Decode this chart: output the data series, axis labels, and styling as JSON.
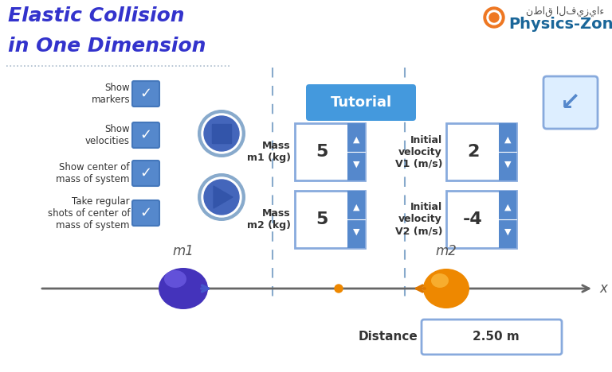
{
  "title_line1": "Elastic Collision",
  "title_line2": "in One Dimension",
  "title_color": "#3333cc",
  "website": "Physics-Zone.com",
  "website_color": "#1a6699",
  "arabic_text": "نطاق الفيزياء",
  "bg_color": "#ffffff",
  "checkbox_color_bg": "#5588cc",
  "checkbox_color_border": "#4477bb",
  "label_color": "#555555",
  "dark_label_color": "#333333",
  "tutorial_bg": "#4499dd",
  "tutorial_text_color": "#ffffff",
  "axis_color": "#666666",
  "dashed_line_color": "#88aacc",
  "m1_ball_color": "#4433bb",
  "m2_ball_color": "#ee8800",
  "arrow1_color": "#4455cc",
  "arrow2_color": "#dd7700",
  "cm_dot_color": "#ee8800",
  "input_box_face": "#eef4ff",
  "input_box_edge": "#88aadd",
  "input_box_side_bg": "#5588cc",
  "back_btn_face": "#ddeeff",
  "back_btn_edge": "#88aadd",
  "stop_btn_outer": "#88aacc",
  "stop_btn_inner": "#3355aa",
  "play_btn_outer": "#88aacc",
  "play_btn_inner": "#3355aa",
  "x_label": "x",
  "m1_label": "Mass\nm1 (kg)",
  "m2_label": "Mass\nm2 (kg)",
  "v1_label": "Initial\nvelocity\nV1 (m/s)",
  "v2_label": "Initial\nvelocity\nV2 (m/s)",
  "m1_value": "5",
  "m2_value": "5",
  "v1_value": "2",
  "v2_value": "-4",
  "distance_label": "Distance",
  "distance_value": "2.50 m",
  "tutorial_label": "Tutorial",
  "cb_texts": [
    "Show\nmarkers",
    "Show\nvelocities",
    "Show center of\nmass of system",
    "Take regular\nshots of center of\nmass of system"
  ],
  "dotted_line_color": "#aabbcc"
}
